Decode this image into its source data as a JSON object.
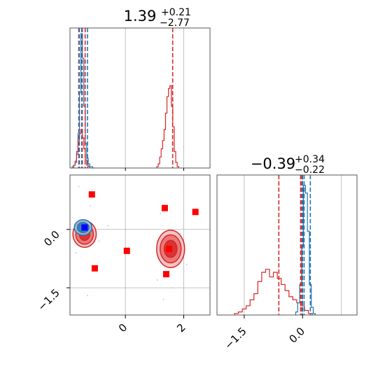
{
  "chart_data": [
    {
      "type": "histogram",
      "panel": "top-left marginal",
      "title": {
        "value": "1.39",
        "sup": "+0.21",
        "sub": "−2.77"
      },
      "xlim": [
        -1.9,
        2.9
      ],
      "grid": true,
      "series": [
        {
          "name": "",
          "color": "#1f77b4",
          "x": [
            -1.8,
            -1.75,
            -1.7,
            -1.65,
            -1.6,
            -1.55,
            -1.5,
            -1.45,
            -1.4,
            -1.35,
            -1.3,
            -1.25,
            -1.2,
            -1.15,
            -1.1
          ],
          "y": [
            0.01,
            0.02,
            0.04,
            0.1,
            0.25,
            0.55,
            0.98,
            0.8,
            0.45,
            0.18,
            0.07,
            0.03,
            0.01,
            0.01,
            0.0
          ]
        },
        {
          "name": "",
          "color": "#d62728",
          "x": [
            -1.75,
            -1.7,
            -1.65,
            -1.6,
            -1.55,
            -1.5,
            -1.45,
            -1.4,
            -1.35,
            -1.3,
            -1.25,
            1.1,
            1.15,
            1.2,
            1.25,
            1.3,
            1.35,
            1.4,
            1.45,
            1.5,
            1.55,
            1.6,
            1.65,
            1.7,
            1.75,
            1.8
          ],
          "y": [
            0.02,
            0.05,
            0.12,
            0.2,
            0.25,
            0.28,
            0.22,
            0.14,
            0.06,
            0.02,
            0.01,
            0.01,
            0.03,
            0.08,
            0.14,
            0.2,
            0.28,
            0.4,
            0.52,
            0.58,
            0.6,
            0.45,
            0.3,
            0.12,
            0.04,
            0.01
          ]
        }
      ],
      "vlines": [
        {
          "x": -1.58,
          "color": "#d62728"
        },
        {
          "x": -1.38,
          "color": "#d62728"
        },
        {
          "x": -1.48,
          "color": "#d62728"
        },
        {
          "x": 1.62,
          "color": "#d62728"
        },
        {
          "x": -1.5,
          "color": "#1f77b4"
        },
        {
          "x": -1.6,
          "color": "#1f77b4"
        },
        {
          "x": -1.3,
          "color": "#1f77b4"
        }
      ]
    },
    {
      "type": "scatter",
      "panel": "bottom-left joint",
      "xlim": [
        -1.9,
        2.9
      ],
      "ylim": [
        -2.2,
        1.4
      ],
      "xticks": [
        0,
        2
      ],
      "yticks": [
        0.0,
        -1.5
      ],
      "xtick_labels": [
        "0",
        "2"
      ],
      "ytick_labels": [
        "0.0",
        "−1.5"
      ],
      "grid": true,
      "points": [
        {
          "x": -1.15,
          "y": 0.9,
          "color": "#ff0000"
        },
        {
          "x": 1.35,
          "y": 0.55,
          "color": "#ff0000"
        },
        {
          "x": 2.4,
          "y": 0.45,
          "color": "#ff0000"
        },
        {
          "x": 0.05,
          "y": -0.55,
          "color": "#ff0000"
        },
        {
          "x": 1.5,
          "y": -0.5,
          "color": "#ff0000"
        },
        {
          "x": -1.05,
          "y": -1.0,
          "color": "#ff0000"
        },
        {
          "x": 1.4,
          "y": -1.15,
          "color": "#ff0000"
        },
        {
          "x": -1.4,
          "y": 0.05,
          "color": "#0000ff"
        }
      ],
      "contours": [
        {
          "cx": -1.4,
          "cy": -0.12,
          "rx": [
            0.4,
            0.3,
            0.18
          ],
          "ry": [
            0.34,
            0.26,
            0.16
          ],
          "color": "#d62728"
        },
        {
          "cx": 1.55,
          "cy": -0.5,
          "rx": [
            0.48,
            0.36,
            0.22
          ],
          "ry": [
            0.48,
            0.36,
            0.22
          ],
          "color": "#d62728"
        },
        {
          "cx": -1.45,
          "cy": 0.05,
          "rx": [
            0.3,
            0.2
          ],
          "ry": [
            0.2,
            0.13
          ],
          "color": "#1f77b4"
        }
      ]
    },
    {
      "type": "histogram",
      "panel": "bottom-right marginal",
      "title": {
        "value": "−0.39",
        "sup": "+0.34",
        "sub": "−0.22"
      },
      "xlim": [
        -2.2,
        1.4
      ],
      "xticks": [
        -1.5,
        0.0
      ],
      "xtick_labels": [
        "−1.5",
        "0.0"
      ],
      "grid": true,
      "series": [
        {
          "name": "",
          "color": "#d62728",
          "x": [
            -1.7,
            -1.6,
            -1.5,
            -1.4,
            -1.3,
            -1.2,
            -1.1,
            -1.0,
            -0.9,
            -0.8,
            -0.7,
            -0.6,
            -0.5,
            -0.4,
            -0.3,
            -0.2,
            -0.1,
            0.0,
            0.1,
            0.2
          ],
          "y": [
            0.01,
            0.02,
            0.04,
            0.06,
            0.1,
            0.14,
            0.22,
            0.28,
            0.3,
            0.25,
            0.28,
            0.24,
            0.2,
            0.16,
            0.12,
            0.1,
            0.08,
            0.06,
            0.03,
            0.01
          ]
        },
        {
          "name": "",
          "color": "#1f77b4",
          "x": [
            -0.15,
            -0.1,
            -0.05,
            0.0,
            0.05,
            0.1,
            0.15,
            0.2,
            0.25,
            0.3
          ],
          "y": [
            0.02,
            0.08,
            0.2,
            0.45,
            0.85,
            0.8,
            0.55,
            0.2,
            0.05,
            0.01
          ]
        }
      ],
      "vlines": [
        {
          "x": -0.61,
          "color": "#d62728"
        },
        {
          "x": -0.05,
          "color": "#d62728"
        },
        {
          "x": -0.02,
          "color": "#d62728"
        },
        {
          "x": 0.0,
          "color": "#1f77b4"
        },
        {
          "x": 0.04,
          "color": "#1f77b4"
        },
        {
          "x": 0.2,
          "color": "#1f77b4"
        }
      ]
    }
  ]
}
